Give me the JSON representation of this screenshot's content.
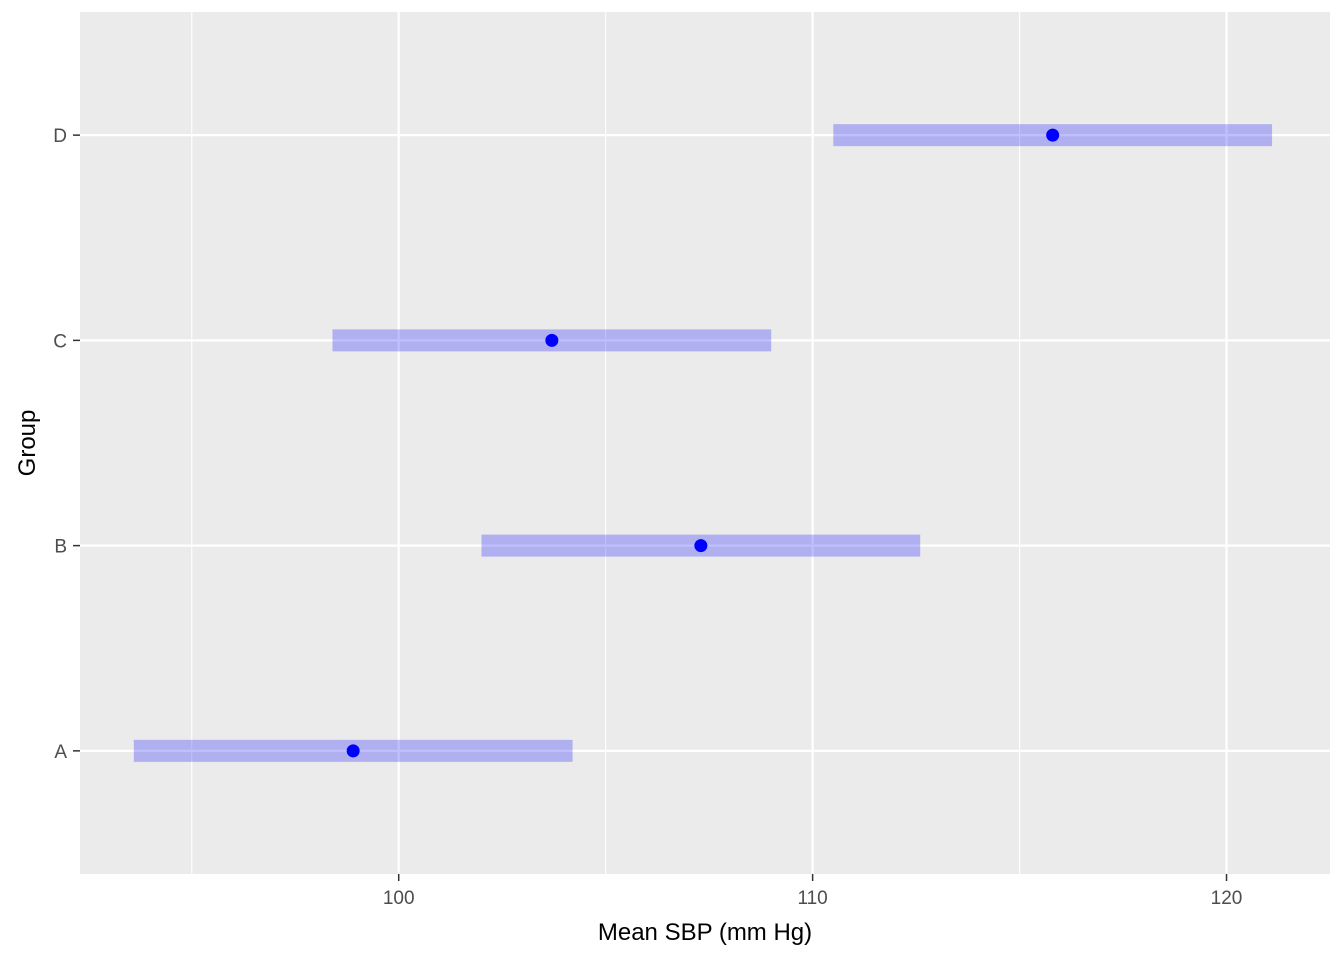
{
  "chart_data": {
    "type": "range-dot",
    "xlabel": "Mean SBP (mm Hg)",
    "ylabel": "Group",
    "xlim": [
      92.3,
      122.5
    ],
    "x_ticks": [
      100,
      110,
      120
    ],
    "x_minor_ticks": [
      95,
      105,
      115
    ],
    "categories": [
      "A",
      "B",
      "C",
      "D"
    ],
    "series": [
      {
        "points": [
          {
            "group": "A",
            "mean": 98.9,
            "lower": 93.6,
            "upper": 104.2
          },
          {
            "group": "B",
            "mean": 107.3,
            "lower": 102.0,
            "upper": 112.6
          },
          {
            "group": "C",
            "mean": 103.7,
            "lower": 98.4,
            "upper": 109.0
          },
          {
            "group": "D",
            "mean": 115.8,
            "lower": 110.5,
            "upper": 121.1
          }
        ]
      }
    ],
    "grid": true,
    "colors": {
      "panel": "#ebebeb",
      "grid": "#ffffff",
      "interval": "#0000ff",
      "interval_opacity": 0.25,
      "point": "#0000ff",
      "tick": "#333333"
    }
  }
}
